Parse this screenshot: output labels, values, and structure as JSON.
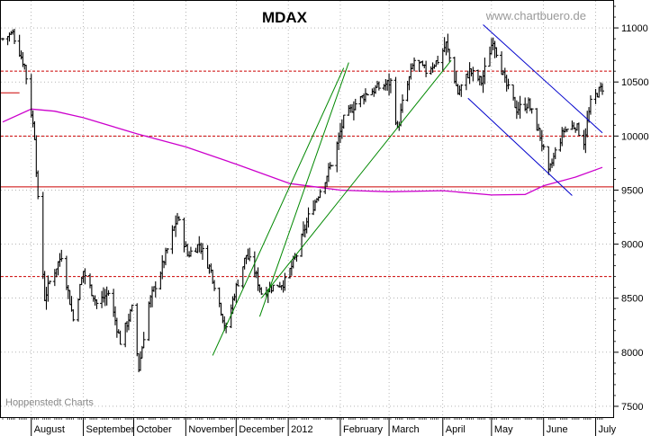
{
  "chart_data": {
    "type": "ohlc",
    "title": "MDAX",
    "watermark": "www.chartbuero.de",
    "credit": "Hoppenstedt Charts",
    "y_axis": {
      "position": "right",
      "min": 7400,
      "max": 11250,
      "ticks": [
        11000,
        10500,
        10000,
        9500,
        9000,
        8500,
        8000,
        7500
      ]
    },
    "x_axis": {
      "start": "2011-07-15",
      "end": "2012-07-06",
      "month_labels": [
        {
          "label": "August",
          "date": "2011-08-01"
        },
        {
          "label": "September",
          "date": "2011-09-01"
        },
        {
          "label": "October",
          "date": "2011-10-01"
        },
        {
          "label": "November",
          "date": "2011-11-01"
        },
        {
          "label": "December",
          "date": "2011-12-01"
        },
        {
          "label": "2012",
          "date": "2012-01-01"
        },
        {
          "label": "February",
          "date": "2012-02-01"
        },
        {
          "label": "March",
          "date": "2012-03-01"
        },
        {
          "label": "April",
          "date": "2012-04-02"
        },
        {
          "label": "May",
          "date": "2012-05-01"
        },
        {
          "label": "June",
          "date": "2012-06-01"
        },
        {
          "label": "July",
          "date": "2012-07-02"
        }
      ]
    },
    "price_anchors": [
      [
        "2011-07-15",
        10900
      ],
      [
        "2011-07-21",
        10950
      ],
      [
        "2011-07-28",
        10650
      ],
      [
        "2011-08-03",
        10000
      ],
      [
        "2011-08-05",
        9400
      ],
      [
        "2011-08-09",
        8500
      ],
      [
        "2011-08-12",
        8650
      ],
      [
        "2011-08-19",
        8900
      ],
      [
        "2011-08-26",
        8300
      ],
      [
        "2011-09-01",
        8750
      ],
      [
        "2011-09-09",
        8450
      ],
      [
        "2011-09-16",
        8550
      ],
      [
        "2011-09-23",
        8100
      ],
      [
        "2011-09-30",
        8400
      ],
      [
        "2011-10-04",
        7850
      ],
      [
        "2011-10-10",
        8450
      ],
      [
        "2011-10-17",
        8750
      ],
      [
        "2011-10-21",
        8950
      ],
      [
        "2011-10-27",
        9250
      ],
      [
        "2011-11-02",
        8900
      ],
      [
        "2011-11-09",
        9000
      ],
      [
        "2011-11-16",
        8750
      ],
      [
        "2011-11-21",
        8450
      ],
      [
        "2011-11-25",
        8200
      ],
      [
        "2011-11-30",
        8550
      ],
      [
        "2011-12-07",
        8900
      ],
      [
        "2011-12-12",
        8750
      ],
      [
        "2011-12-16",
        8550
      ],
      [
        "2011-12-22",
        8600
      ],
      [
        "2011-12-30",
        8650
      ],
      [
        "2012-01-06",
        8900
      ],
      [
        "2012-01-13",
        9250
      ],
      [
        "2012-01-20",
        9500
      ],
      [
        "2012-01-27",
        9750
      ],
      [
        "2012-02-03",
        10150
      ],
      [
        "2012-02-10",
        10300
      ],
      [
        "2012-02-17",
        10400
      ],
      [
        "2012-02-24",
        10450
      ],
      [
        "2012-03-02",
        10500
      ],
      [
        "2012-03-06",
        10050
      ],
      [
        "2012-03-09",
        10300
      ],
      [
        "2012-03-16",
        10700
      ],
      [
        "2012-03-23",
        10600
      ],
      [
        "2012-03-30",
        10700
      ],
      [
        "2012-04-04",
        10850
      ],
      [
        "2012-04-11",
        10400
      ],
      [
        "2012-04-18",
        10600
      ],
      [
        "2012-04-25",
        10500
      ],
      [
        "2012-05-02",
        10900
      ],
      [
        "2012-05-09",
        10500
      ],
      [
        "2012-05-16",
        10250
      ],
      [
        "2012-05-23",
        10300
      ],
      [
        "2012-05-30",
        10000
      ],
      [
        "2012-06-04",
        9650
      ],
      [
        "2012-06-08",
        9850
      ],
      [
        "2012-06-13",
        10050
      ],
      [
        "2012-06-20",
        10100
      ],
      [
        "2012-06-25",
        9950
      ],
      [
        "2012-06-29",
        10300
      ],
      [
        "2012-07-03",
        10400
      ],
      [
        "2012-07-06",
        10450
      ]
    ],
    "moving_average": {
      "color": "#cc00cc",
      "points": [
        [
          "2011-07-15",
          10130
        ],
        [
          "2011-08-01",
          10250
        ],
        [
          "2011-08-15",
          10230
        ],
        [
          "2011-09-01",
          10170
        ],
        [
          "2011-10-03",
          10020
        ],
        [
          "2011-11-01",
          9900
        ],
        [
          "2011-12-01",
          9740
        ],
        [
          "2012-01-02",
          9560
        ],
        [
          "2012-02-01",
          9500
        ],
        [
          "2012-03-01",
          9485
        ],
        [
          "2012-04-02",
          9495
        ],
        [
          "2012-05-01",
          9455
        ],
        [
          "2012-05-21",
          9460
        ],
        [
          "2012-06-01",
          9540
        ],
        [
          "2012-06-20",
          9620
        ],
        [
          "2012-07-06",
          9710
        ]
      ]
    },
    "horizontal_lines": [
      {
        "value": 10600,
        "color": "#cc0000",
        "style": "dashed"
      },
      {
        "value": 10000,
        "color": "#cc0000",
        "style": "dashed"
      },
      {
        "value": 9530,
        "color": "#cc0000",
        "style": "solid"
      },
      {
        "value": 8700,
        "color": "#cc0000",
        "style": "dashed"
      },
      {
        "value": 10400,
        "color": "#cc0000",
        "style": "solid",
        "from": "2011-07-15",
        "to": "2011-07-25"
      }
    ],
    "trendlines": [
      {
        "color": "#008800",
        "from": [
          "2011-11-17",
          7970
        ],
        "to": [
          "2012-02-03",
          10630
        ]
      },
      {
        "color": "#008800",
        "from": [
          "2011-12-15",
          8330
        ],
        "to": [
          "2012-02-06",
          10680
        ]
      },
      {
        "color": "#008800",
        "from": [
          "2011-12-16",
          8500
        ],
        "to": [
          "2012-04-07",
          10700
        ]
      },
      {
        "color": "#0000cc",
        "from": [
          "2012-04-26",
          11030
        ],
        "to": [
          "2012-07-06",
          10030
        ]
      },
      {
        "color": "#0000cc",
        "from": [
          "2012-04-17",
          10350
        ],
        "to": [
          "2012-06-18",
          9450
        ]
      }
    ],
    "colors": {
      "bars": "#000000",
      "grid": "#888888",
      "frame": "#000000",
      "background": "#ffffff"
    }
  }
}
